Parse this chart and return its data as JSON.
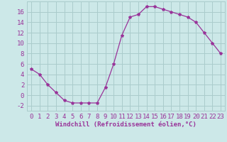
{
  "x": [
    0,
    1,
    2,
    3,
    4,
    5,
    6,
    7,
    8,
    9,
    10,
    11,
    12,
    13,
    14,
    15,
    16,
    17,
    18,
    19,
    20,
    21,
    22,
    23
  ],
  "y": [
    5,
    4,
    2,
    0.5,
    -1,
    -1.5,
    -1.5,
    -1.5,
    -1.5,
    1.5,
    6,
    11.5,
    15,
    15.5,
    17,
    17,
    16.5,
    16,
    15.5,
    15,
    14,
    12,
    10,
    8
  ],
  "line_color": "#993399",
  "marker": "*",
  "marker_size": 3,
  "xlabel": "Windchill (Refroidissement éolien,°C)",
  "xlim": [
    -0.5,
    23.5
  ],
  "ylim": [
    -3,
    18
  ],
  "yticks": [
    -2,
    0,
    2,
    4,
    6,
    8,
    10,
    12,
    14,
    16
  ],
  "xticks": [
    0,
    1,
    2,
    3,
    4,
    5,
    6,
    7,
    8,
    9,
    10,
    11,
    12,
    13,
    14,
    15,
    16,
    17,
    18,
    19,
    20,
    21,
    22,
    23
  ],
  "background_color": "#cce8e8",
  "grid_color": "#aacccc",
  "xlabel_fontsize": 6.5,
  "tick_fontsize": 6.5
}
